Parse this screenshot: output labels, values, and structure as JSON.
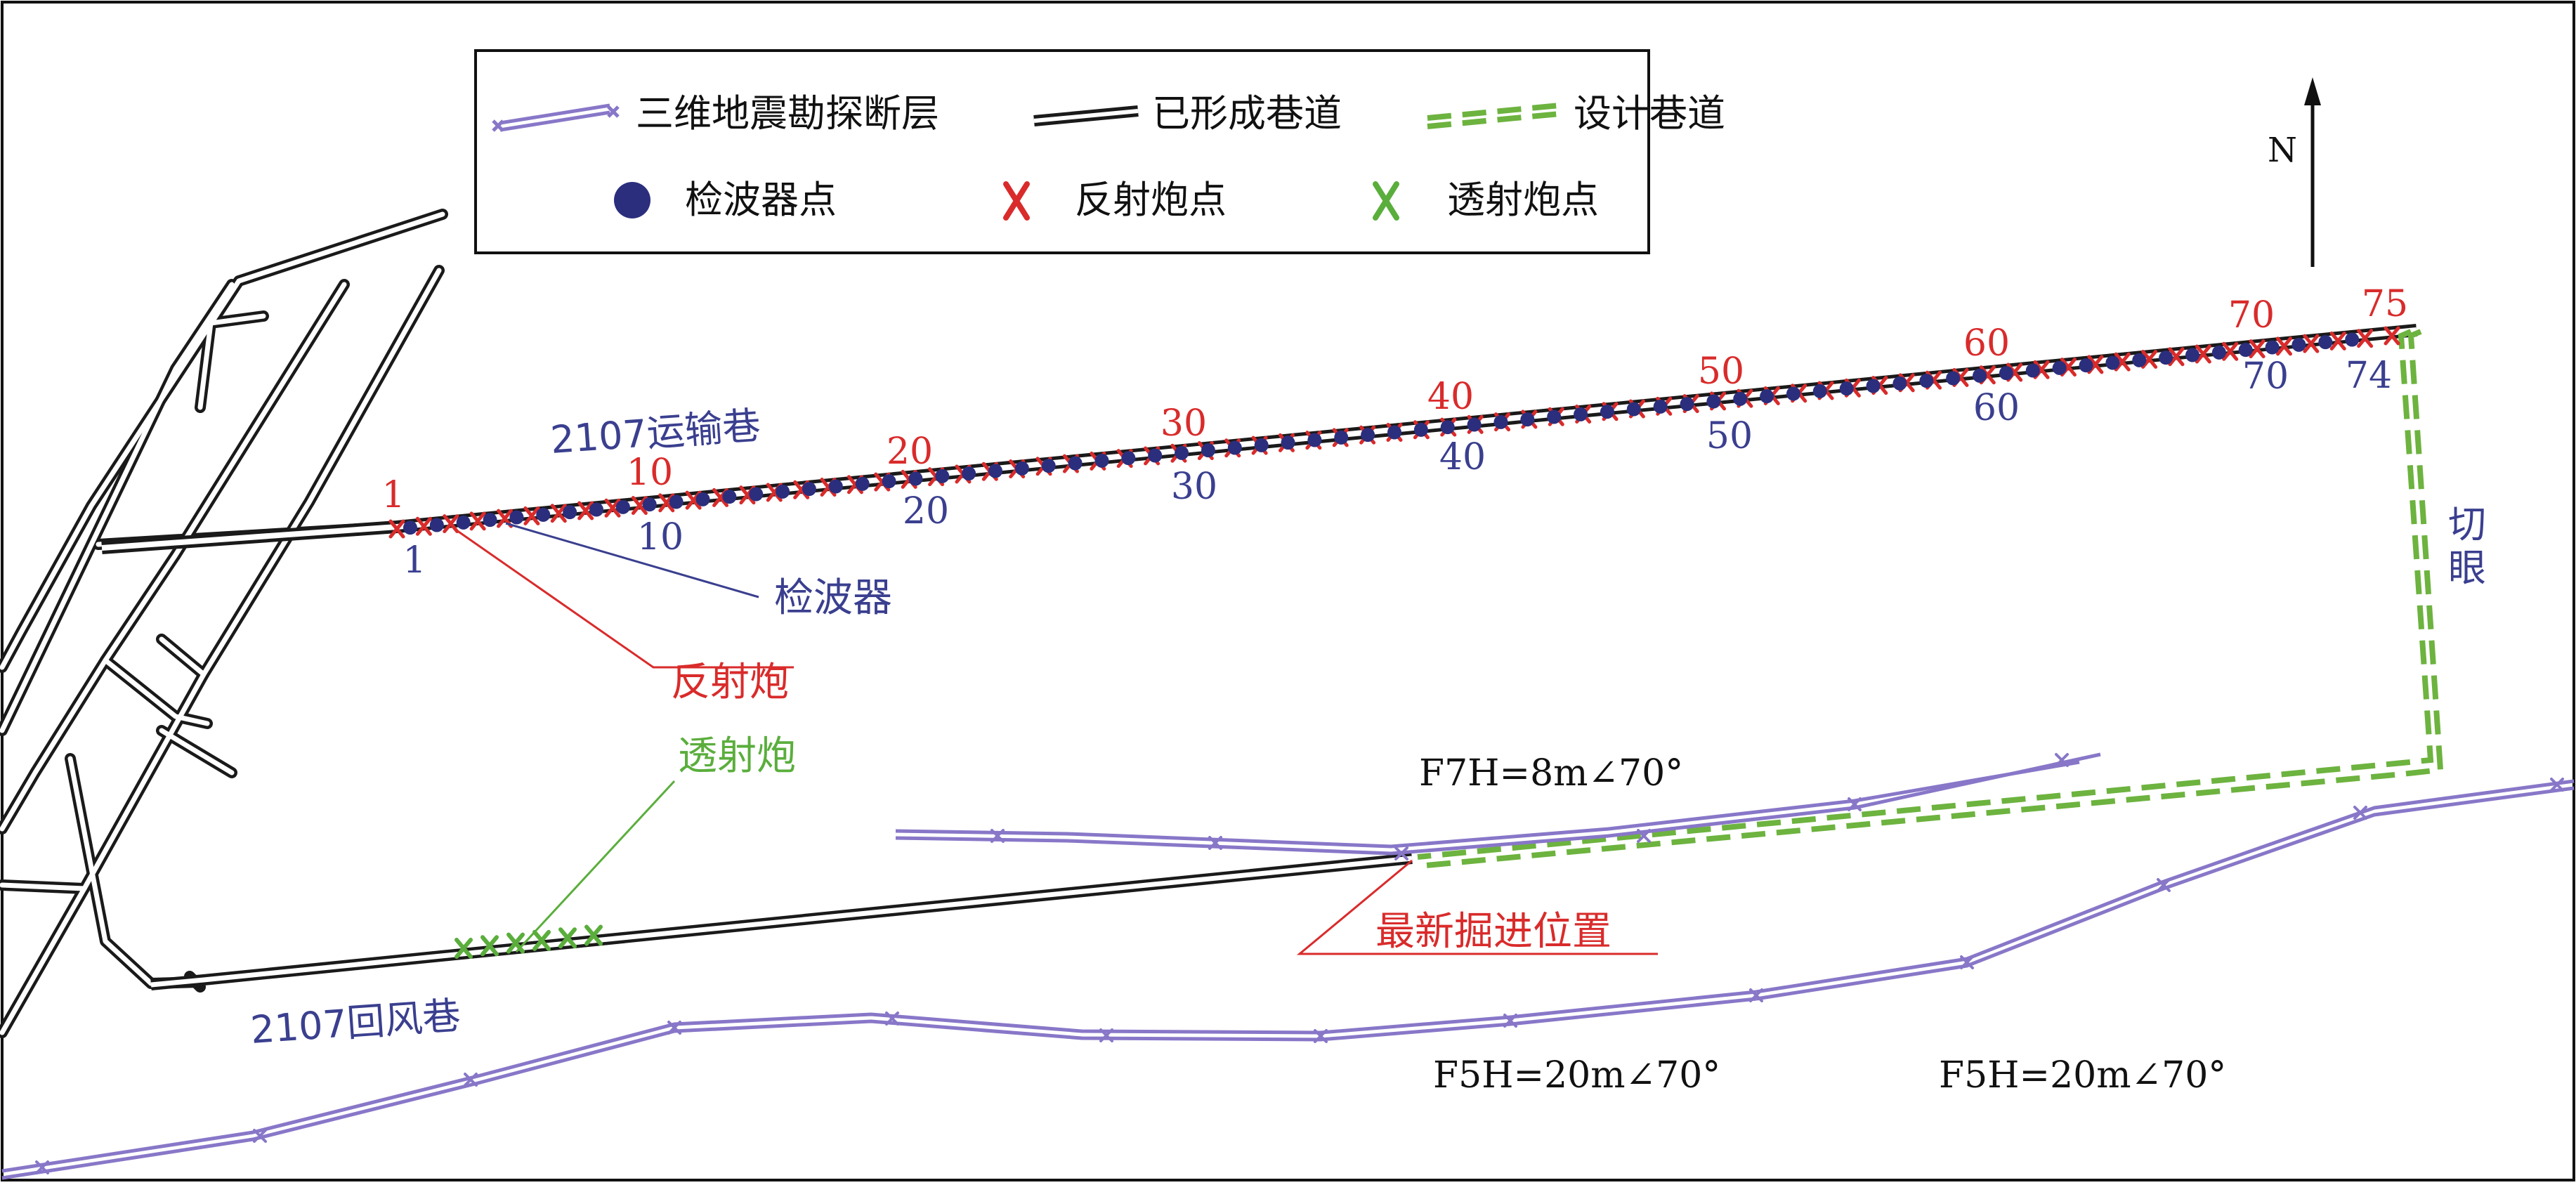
{
  "colors": {
    "fault": "#8877c8",
    "fault_cross": "#8877c8",
    "roadway": "#1a1a1a",
    "design": "#6db33f",
    "geophone": "#2b2e7d",
    "reflection_shot": "#d92b2b",
    "transmission_shot": "#5aae3c",
    "label_blue": "#3a3f8f",
    "label_red": "#d92b2b",
    "label_green": "#5aae3c",
    "text_black": "#111111"
  },
  "legend": {
    "fault": "三维地震勘探断层",
    "roadway_formed": "已形成巷道",
    "roadway_design": "设计巷道",
    "geophone_point": "检波器点",
    "reflection_shot_point": "反射炮点",
    "transmission_shot_point": "透射炮点"
  },
  "north": "N",
  "labels": {
    "transport_lane": "2107运输巷",
    "return_lane": "2107回风巷",
    "cut_eye": "切眼",
    "geophone": "检波器",
    "reflection_shot": "反射炮",
    "transmission_shot": "透射炮",
    "latest_position": "最新掘进位置",
    "fault_f7": "F7H=8m∠70°",
    "fault_f5_left": "F5H=20m∠70°",
    "fault_f5_right": "F5H=20m∠70°"
  },
  "shot_numbers": [
    "1",
    "10",
    "20",
    "30",
    "40",
    "50",
    "60",
    "70",
    "75"
  ],
  "geophone_numbers": [
    "1",
    "10",
    "20",
    "30",
    "40",
    "50",
    "60",
    "70",
    "74"
  ],
  "counts": {
    "reflection_shots": 75,
    "geophones": 74,
    "transmission_shots": 6
  }
}
